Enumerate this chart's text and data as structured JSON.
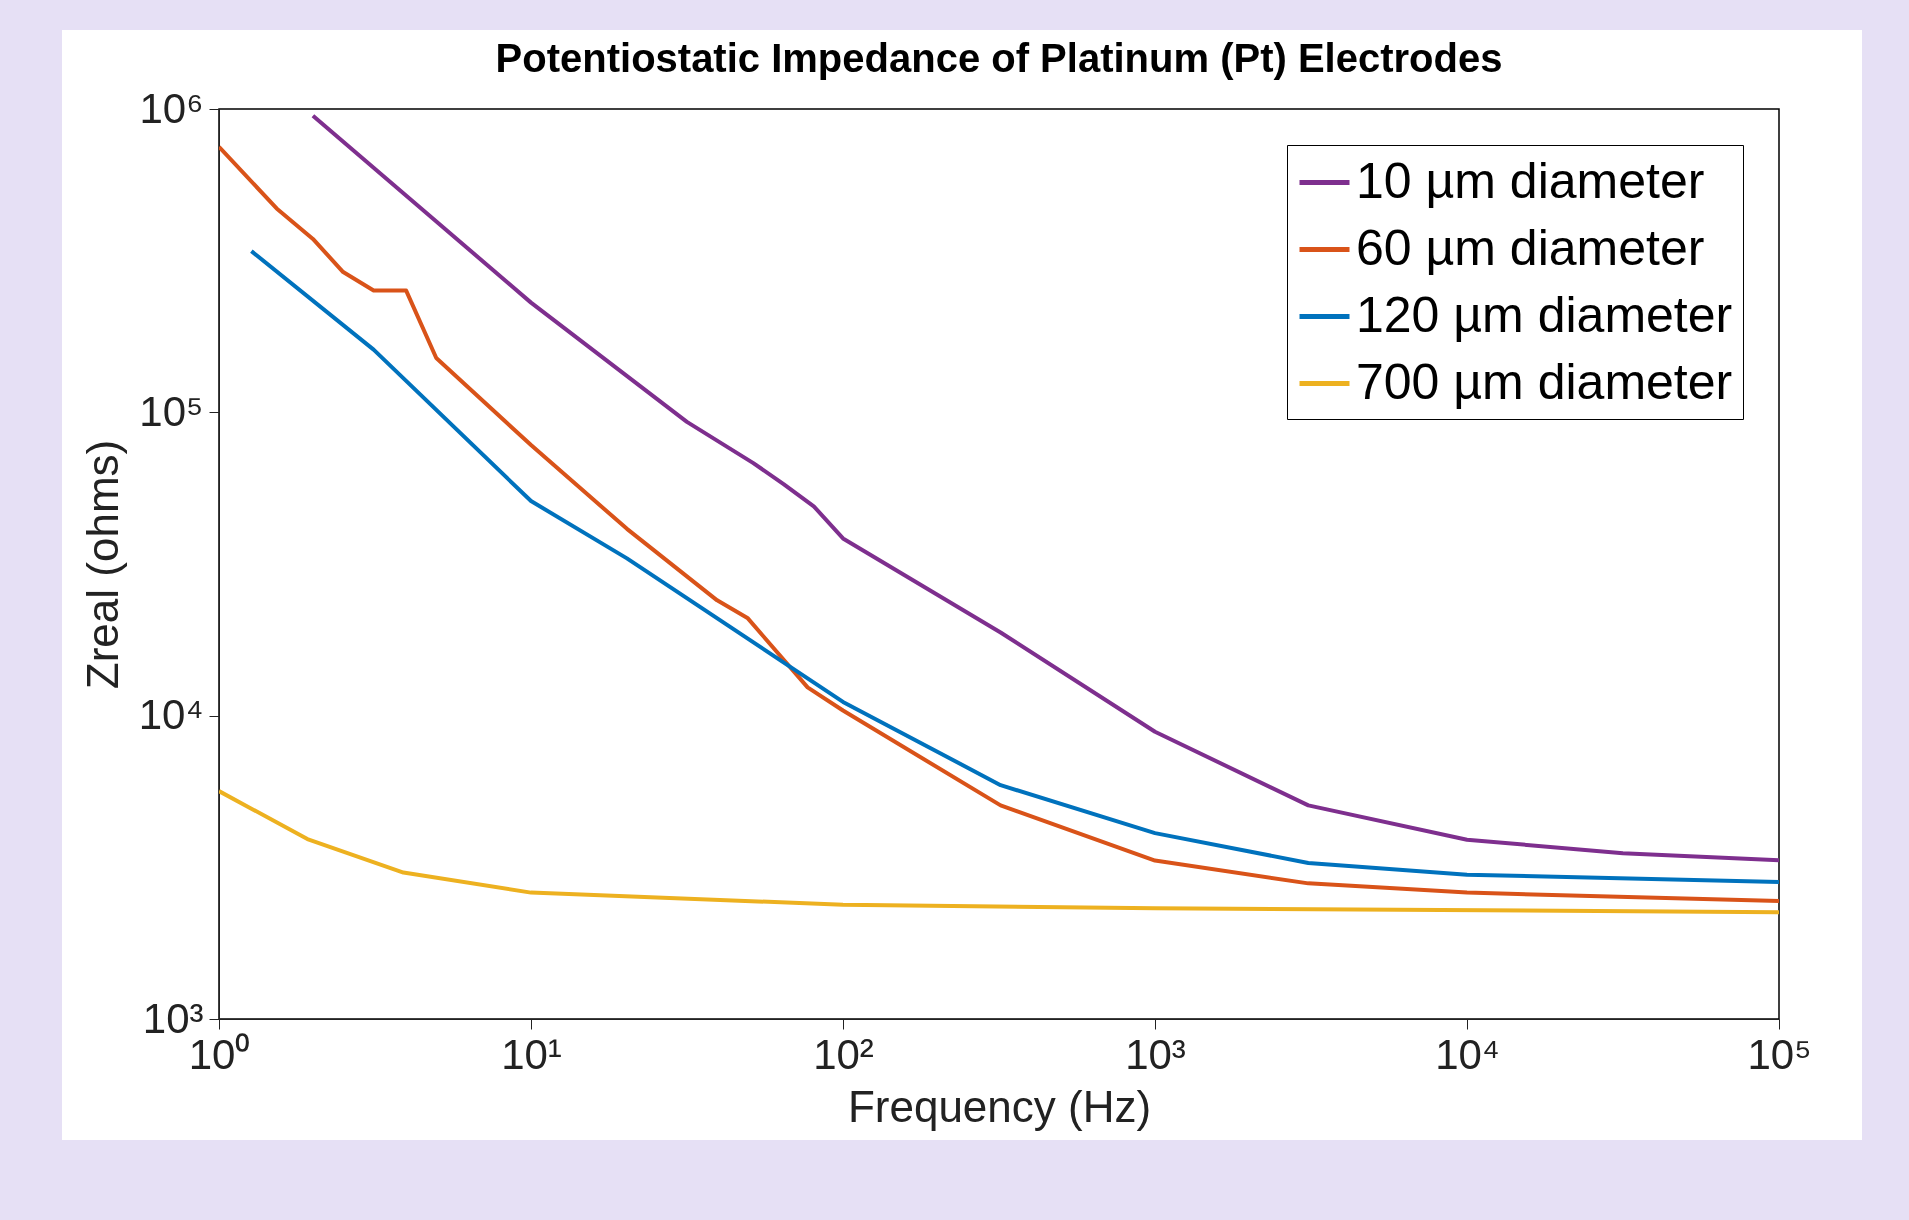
{
  "chart_data": {
    "type": "line",
    "title": "Potentiostatic Impedance of Platinum (Pt) Electrodes",
    "xlabel": "Frequency (Hz)",
    "ylabel": "Zreal (ohms)",
    "log": "xy",
    "grid": false,
    "legend": "top right",
    "marker": "none",
    "line_style": "solid",
    "xlim": [
      1,
      100000
    ],
    "ylim": [
      1000,
      1000000
    ],
    "xticks": [
      {
        "value": 1,
        "label": "10⁰"
      },
      {
        "value": 10,
        "label": "10¹"
      },
      {
        "value": 100,
        "label": "10²"
      },
      {
        "value": 1000,
        "label": "10³"
      },
      {
        "value": 10000,
        "label": "10⁴"
      },
      {
        "value": 100000,
        "label": "10⁵"
      }
    ],
    "yticks": [
      {
        "value": 1000,
        "label": "10³"
      },
      {
        "value": 10000,
        "label": "10⁴"
      },
      {
        "value": 100000,
        "label": "10⁵"
      },
      {
        "value": 1000000,
        "label": "10⁶"
      }
    ],
    "series": [
      {
        "name": "10 µm diameter",
        "color": "#7e2f8e",
        "x": [
          2,
          10,
          31.6,
          51.6,
          64.5,
          80.6,
          100,
          320,
          1000,
          3100,
          10000,
          31600,
          100000
        ],
        "values": [
          950000,
          230000,
          93000,
          68000,
          58000,
          49000,
          38400,
          18800,
          8850,
          5060,
          3900,
          3520,
          3340
        ]
      },
      {
        "name": "60 µm diameter",
        "color": "#d95319",
        "x": [
          1,
          1.53,
          2,
          2.5,
          3.13,
          3.98,
          4.97,
          10,
          20.3,
          39.5,
          49.4,
          77,
          100,
          320,
          1000,
          3100,
          10000,
          100000
        ],
        "values": [
          750000,
          470000,
          373000,
          290000,
          252000,
          252000,
          151000,
          78000,
          41300,
          24000,
          21000,
          12400,
          10400,
          5060,
          3330,
          2800,
          2610,
          2450
        ]
      },
      {
        "name": "120 µm diameter",
        "color": "#0072bd",
        "x": [
          1.27,
          3.13,
          10,
          20.3,
          100,
          320,
          1000,
          3100,
          10000,
          100000
        ],
        "values": [
          340000,
          161000,
          51000,
          33000,
          11100,
          5900,
          4100,
          3270,
          2990,
          2830
        ]
      },
      {
        "name": "700 µm diameter",
        "color": "#edb120",
        "x": [
          1,
          1.92,
          3.9,
          10,
          100,
          1000,
          100000
        ],
        "values": [
          5640,
          3920,
          3040,
          2610,
          2380,
          2320,
          2250
        ]
      }
    ]
  }
}
